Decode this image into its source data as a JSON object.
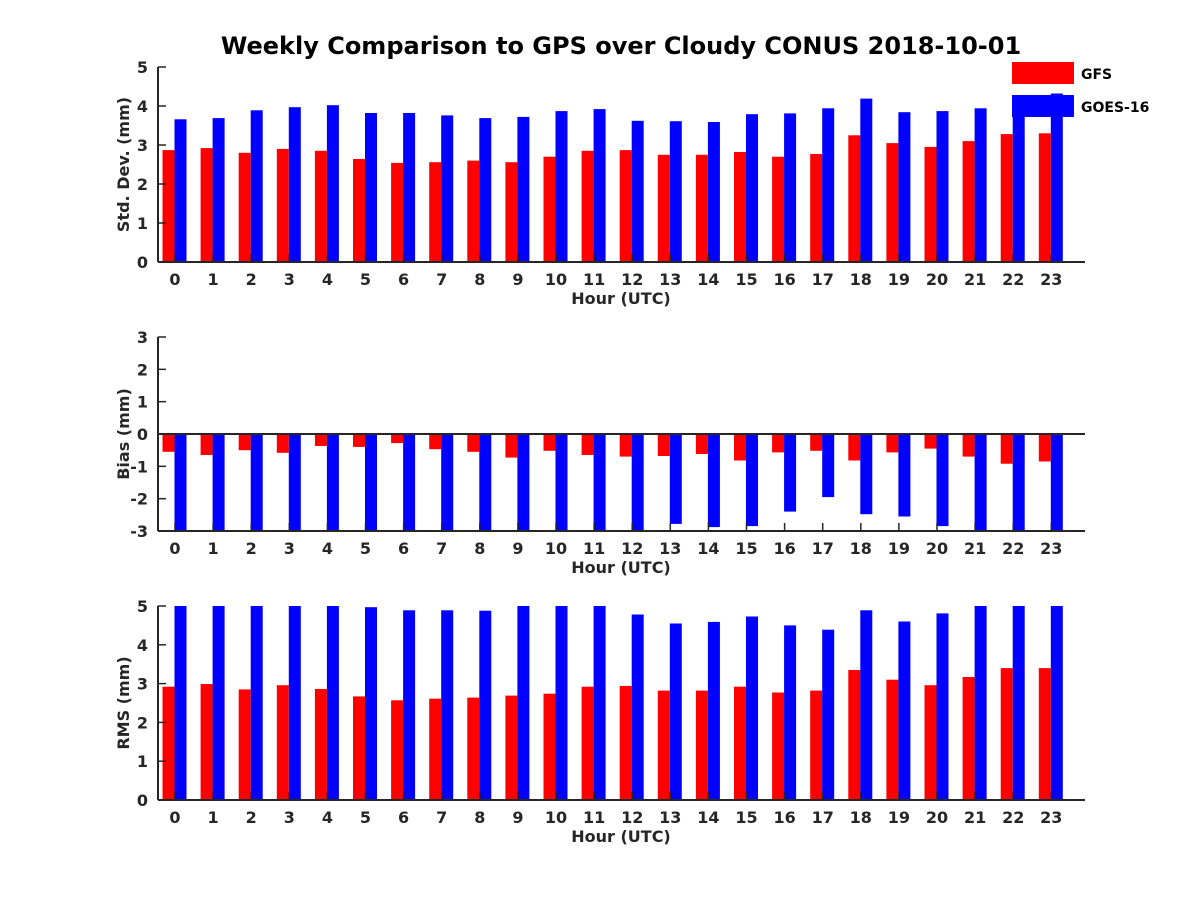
{
  "title": "Weekly Comparison to GPS over Cloudy CONUS 2018-10-01",
  "colors": {
    "gfs": "#ff0000",
    "goes": "#0000ff",
    "axis": "#262626"
  },
  "legend": {
    "placement": "top-right",
    "entries": [
      "GFS",
      "GOES-16"
    ]
  },
  "chart_data": [
    {
      "type": "bar",
      "categories": [
        "0",
        "1",
        "2",
        "3",
        "4",
        "5",
        "6",
        "7",
        "8",
        "9",
        "10",
        "11",
        "12",
        "13",
        "14",
        "15",
        "16",
        "17",
        "18",
        "19",
        "20",
        "21",
        "22",
        "23"
      ],
      "xlabel": "Hour (UTC)",
      "ylabel": "Std. Dev. (mm)",
      "ylim": [
        0,
        5
      ],
      "yticks": [
        "0",
        "1",
        "2",
        "3",
        "4",
        "5"
      ],
      "series": [
        {
          "name": "GFS",
          "values": [
            2.87,
            2.92,
            2.8,
            2.9,
            2.85,
            2.64,
            2.54,
            2.56,
            2.6,
            2.56,
            2.7,
            2.85,
            2.87,
            2.75,
            2.75,
            2.82,
            2.7,
            2.77,
            3.25,
            3.05,
            2.95,
            3.1,
            3.28,
            3.3
          ]
        },
        {
          "name": "GOES-16",
          "values": [
            3.66,
            3.69,
            3.89,
            3.97,
            4.02,
            3.82,
            3.82,
            3.76,
            3.69,
            3.72,
            3.87,
            3.92,
            3.62,
            3.61,
            3.59,
            3.79,
            3.81,
            3.94,
            4.19,
            3.84,
            3.87,
            3.94,
            4.27,
            4.32
          ]
        }
      ]
    },
    {
      "type": "bar",
      "categories": [
        "0",
        "1",
        "2",
        "3",
        "4",
        "5",
        "6",
        "7",
        "8",
        "9",
        "10",
        "11",
        "12",
        "13",
        "14",
        "15",
        "16",
        "17",
        "18",
        "19",
        "20",
        "21",
        "22",
        "23"
      ],
      "xlabel": "Hour (UTC)",
      "ylabel": "Bias (mm)",
      "ylim": [
        -3,
        3
      ],
      "yticks": [
        "-3",
        "-2",
        "-1",
        "0",
        "1",
        "2",
        "3"
      ],
      "series": [
        {
          "name": "GFS",
          "values": [
            -0.55,
            -0.65,
            -0.5,
            -0.58,
            -0.37,
            -0.4,
            -0.28,
            -0.47,
            -0.55,
            -0.73,
            -0.52,
            -0.65,
            -0.7,
            -0.68,
            -0.62,
            -0.82,
            -0.57,
            -0.52,
            -0.82,
            -0.57,
            -0.45,
            -0.7,
            -0.92,
            -0.85
          ]
        },
        {
          "name": "GOES-16",
          "values": [
            -3.2,
            -3.2,
            -3.2,
            -3.2,
            -3.2,
            -3.2,
            -3.2,
            -3.2,
            -3.2,
            -3.2,
            -3.2,
            -3.2,
            -3.2,
            -2.78,
            -2.88,
            -2.85,
            -2.4,
            -1.95,
            -2.48,
            -2.55,
            -2.85,
            -3.2,
            -3.2,
            -3.2
          ]
        }
      ]
    },
    {
      "type": "bar",
      "categories": [
        "0",
        "1",
        "2",
        "3",
        "4",
        "5",
        "6",
        "7",
        "8",
        "9",
        "10",
        "11",
        "12",
        "13",
        "14",
        "15",
        "16",
        "17",
        "18",
        "19",
        "20",
        "21",
        "22",
        "23"
      ],
      "xlabel": "Hour (UTC)",
      "ylabel": "RMS (mm)",
      "ylim": [
        0,
        5
      ],
      "yticks": [
        "0",
        "1",
        "2",
        "3",
        "4",
        "5"
      ],
      "series": [
        {
          "name": "GFS",
          "values": [
            2.92,
            2.99,
            2.85,
            2.96,
            2.86,
            2.67,
            2.57,
            2.61,
            2.64,
            2.69,
            2.74,
            2.92,
            2.94,
            2.82,
            2.82,
            2.92,
            2.77,
            2.82,
            3.35,
            3.1,
            2.96,
            3.17,
            3.4,
            3.4
          ]
        },
        {
          "name": "GOES-16",
          "values": [
            5.2,
            5.2,
            5.2,
            5.2,
            5.2,
            4.97,
            4.89,
            4.89,
            4.88,
            5.2,
            5.2,
            5.2,
            4.78,
            4.55,
            4.59,
            4.73,
            4.5,
            4.39,
            4.89,
            4.6,
            4.81,
            5.2,
            5.2,
            5.2
          ]
        }
      ]
    }
  ]
}
